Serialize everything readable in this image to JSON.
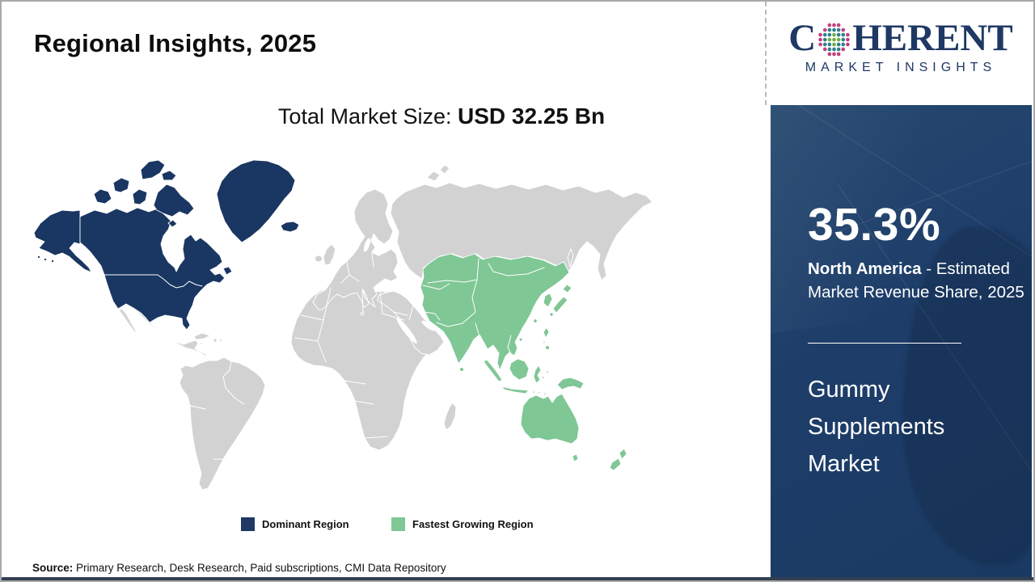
{
  "header": {
    "title": "Regional Insights, 2025"
  },
  "logo": {
    "brand_c": "C",
    "brand_rest": "HERENT",
    "subtitle": "MARKET INSIGHTS",
    "globe_icon": "dotted-globe"
  },
  "main": {
    "market_size_label": "Total Market Size: ",
    "market_size_value": "USD 32.25 Bn",
    "legend": [
      {
        "label": "Dominant Region",
        "color": "#1F3864"
      },
      {
        "label": "Fastest Growing Region",
        "color": "#7FC795"
      }
    ],
    "source_label": "Source:",
    "source_text": " Primary Research, Desk Research, Paid subscriptions, CMI Data Repository"
  },
  "sidebar": {
    "share_value": "35.3%",
    "share_region": "North America",
    "share_desc": " - Estimated Market Revenue Share, 2025",
    "market_name": "Gummy Supplements Market"
  },
  "colors": {
    "dominant": "#1F3864",
    "growing": "#7FC795",
    "map_dominant": "#1A3662",
    "base_land": "#D2D2D2",
    "sidebar_bg": "#1E3E6A",
    "brand_navy": "#1F3864",
    "globe_teal": "#2E7F8C",
    "globe_green": "#6FAE44",
    "globe_pink": "#C2417E"
  },
  "chart_data": {
    "type": "heatmap",
    "subtype": "world-choropleth-map",
    "title": "Regional Insights, 2025",
    "total_market_size": "USD 32.25 Bn",
    "market": "Gummy Supplements Market",
    "legend_position": "bottom",
    "categories": [
      "Dominant Region",
      "Fastest Growing Region"
    ],
    "regions": [
      {
        "name": "North America",
        "classification": "Dominant Region",
        "color": "#1F3864",
        "estimated_market_revenue_share_2025": "35.3%"
      },
      {
        "name": "Asia Pacific",
        "classification": "Fastest Growing Region",
        "color": "#7FC795",
        "estimated_market_revenue_share_2025": null
      }
    ],
    "source": "Primary Research, Desk Research, Paid subscriptions, CMI Data Repository"
  }
}
